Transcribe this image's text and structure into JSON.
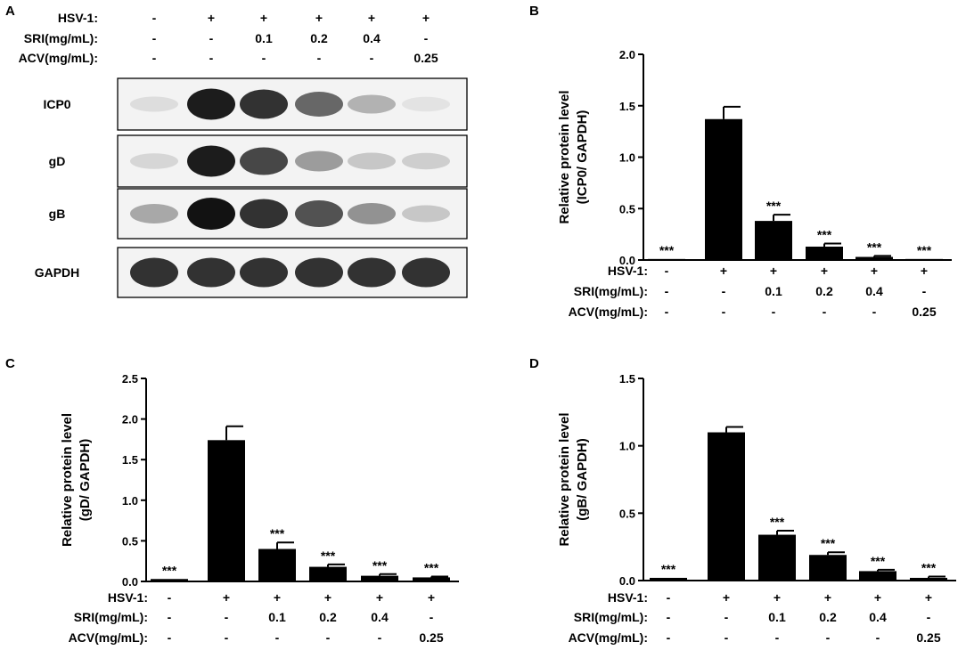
{
  "panels": {
    "a": "A",
    "b": "B",
    "c": "C",
    "d": "D"
  },
  "western_blot": {
    "conditions": [
      {
        "label": "HSV-1:",
        "values": [
          "-",
          "+",
          "+",
          "+",
          "+",
          "+"
        ]
      },
      {
        "label": "SRI(mg/mL):",
        "values": [
          "-",
          "-",
          "0.1",
          "0.2",
          "0.4",
          "-"
        ]
      },
      {
        "label": "ACV(mg/mL):",
        "values": [
          "-",
          "-",
          "-",
          "-",
          "-",
          "0.25"
        ]
      }
    ],
    "blots": [
      {
        "label": "ICP0",
        "intensity": [
          0.05,
          0.95,
          0.85,
          0.6,
          0.25,
          0.02
        ]
      },
      {
        "label": "gD",
        "intensity": [
          0.08,
          0.95,
          0.75,
          0.35,
          0.15,
          0.12
        ]
      },
      {
        "label": "gB",
        "intensity": [
          0.3,
          1.0,
          0.85,
          0.7,
          0.4,
          0.15
        ]
      },
      {
        "label": "GAPDH",
        "intensity": [
          0.85,
          0.85,
          0.85,
          0.85,
          0.85,
          0.85
        ]
      }
    ]
  },
  "chart_data": [
    {
      "panel": "B",
      "type": "bar",
      "ylabel": "Relative protein level\n(ICP0/ GAPDH)",
      "ylim": [
        0,
        2.0
      ],
      "yticks": [
        "0.0",
        "0.5",
        "1.0",
        "1.5",
        "2.0"
      ],
      "values": [
        0.01,
        1.37,
        0.38,
        0.13,
        0.03,
        0.01
      ],
      "errors": [
        0.0,
        0.12,
        0.06,
        0.03,
        0.01,
        0.0
      ],
      "annotations": [
        "***",
        "",
        "***",
        "***",
        "***",
        "***"
      ],
      "conditions": [
        {
          "label": "HSV-1:",
          "values": [
            "-",
            "+",
            "+",
            "+",
            "+",
            "+"
          ]
        },
        {
          "label": "SRI(mg/mL):",
          "values": [
            "-",
            "-",
            "0.1",
            "0.2",
            "0.4",
            "-"
          ]
        },
        {
          "label": "ACV(mg/mL):",
          "values": [
            "-",
            "-",
            "-",
            "-",
            "-",
            "0.25"
          ]
        }
      ]
    },
    {
      "panel": "C",
      "type": "bar",
      "ylabel": "Relative protein level\n(gD/ GAPDH)",
      "ylim": [
        0,
        2.5
      ],
      "yticks": [
        "0.0",
        "0.5",
        "1.0",
        "1.5",
        "2.0",
        "2.5"
      ],
      "values": [
        0.03,
        1.74,
        0.4,
        0.18,
        0.07,
        0.05
      ],
      "errors": [
        0.0,
        0.17,
        0.08,
        0.03,
        0.02,
        0.01
      ],
      "annotations": [
        "***",
        "",
        "***",
        "***",
        "***",
        "***"
      ],
      "conditions": [
        {
          "label": "HSV-1:",
          "values": [
            "-",
            "+",
            "+",
            "+",
            "+",
            "+"
          ]
        },
        {
          "label": "SRI(mg/mL):",
          "values": [
            "-",
            "-",
            "0.1",
            "0.2",
            "0.4",
            "-"
          ]
        },
        {
          "label": "ACV(mg/mL):",
          "values": [
            "-",
            "-",
            "-",
            "-",
            "-",
            "0.25"
          ]
        }
      ]
    },
    {
      "panel": "D",
      "type": "bar",
      "ylabel": "Relative protein level\n(gB/ GAPDH)",
      "ylim": [
        0,
        1.5
      ],
      "yticks": [
        "0.0",
        "0.5",
        "1.0",
        "1.5"
      ],
      "values": [
        0.02,
        1.1,
        0.34,
        0.19,
        0.07,
        0.02
      ],
      "errors": [
        0.0,
        0.04,
        0.03,
        0.02,
        0.01,
        0.01
      ],
      "annotations": [
        "***",
        "",
        "***",
        "***",
        "***",
        "***"
      ],
      "conditions": [
        {
          "label": "HSV-1:",
          "values": [
            "-",
            "+",
            "+",
            "+",
            "+",
            "+"
          ]
        },
        {
          "label": "SRI(mg/mL):",
          "values": [
            "-",
            "-",
            "0.1",
            "0.2",
            "0.4",
            "-"
          ]
        },
        {
          "label": "ACV(mg/mL):",
          "values": [
            "-",
            "-",
            "-",
            "-",
            "-",
            "0.25"
          ]
        }
      ]
    }
  ]
}
